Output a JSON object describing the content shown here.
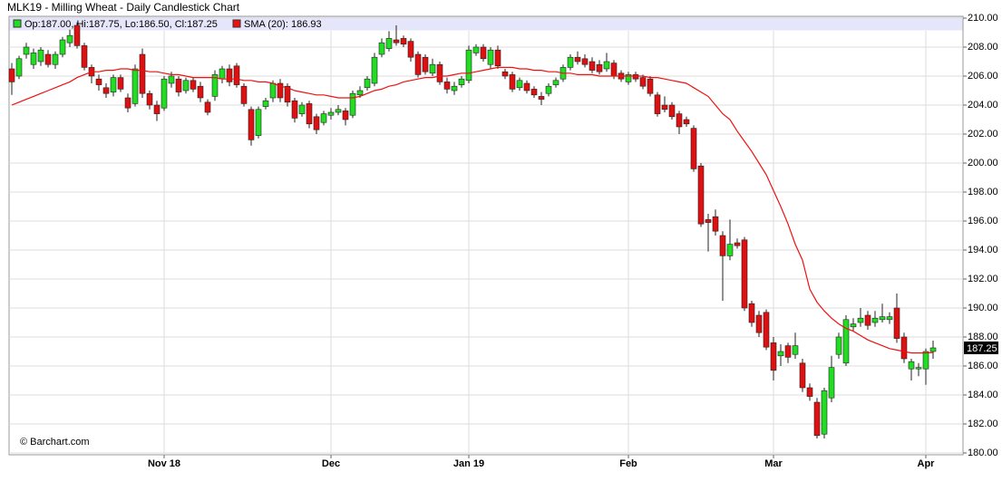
{
  "chart_data": {
    "type": "candlestick",
    "title": "MLK19 - Milling Wheat - Daily Candlestick Chart",
    "ohlc_legend": "Op:187.00, Hi:187.75, Lo:186.50, Cl:187.25",
    "credit": "© Barchart.com",
    "up_color": "#22dd22",
    "down_color": "#dd1111",
    "categories": [
      null,
      null,
      null,
      null,
      null,
      null,
      null,
      null,
      null,
      null,
      null,
      null,
      null,
      null,
      null,
      null,
      null,
      null,
      null,
      null,
      null,
      "Nov 18",
      null,
      null,
      null,
      null,
      null,
      null,
      null,
      null,
      null,
      null,
      null,
      null,
      null,
      null,
      null,
      null,
      null,
      null,
      null,
      null,
      null,
      null,
      "Dec",
      null,
      null,
      null,
      null,
      null,
      null,
      null,
      null,
      null,
      null,
      null,
      null,
      null,
      null,
      null,
      null,
      null,
      null,
      "Jan 19",
      null,
      null,
      null,
      null,
      null,
      null,
      null,
      null,
      null,
      null,
      null,
      null,
      null,
      null,
      null,
      null,
      null,
      null,
      null,
      null,
      null,
      "Feb",
      null,
      null,
      null,
      null,
      null,
      null,
      null,
      null,
      null,
      null,
      null,
      null,
      null,
      null,
      null,
      null,
      null,
      null,
      null,
      "Mar",
      null,
      null,
      null,
      null,
      null,
      null,
      null,
      null,
      null,
      null,
      null,
      null,
      null,
      null,
      null,
      null,
      null,
      null,
      null,
      null,
      "Apr",
      null
    ],
    "open": [
      206.5,
      206.0,
      207.5,
      206.8,
      207.0,
      207.5,
      206.8,
      207.5,
      208.3,
      209.5,
      208.1,
      206.6,
      205.8,
      205.2,
      204.9,
      205.9,
      204.5,
      204.1,
      207.5,
      204.8,
      204.0,
      203.8,
      205.5,
      205.8,
      205.0,
      205.7,
      205.3,
      204.2,
      204.6,
      205.8,
      206.5,
      206.7,
      205.3,
      203.7,
      201.9,
      203.9,
      204.5,
      205.5,
      205.3,
      204.3,
      203.4,
      204.1,
      203.2,
      202.8,
      203.3,
      203.5,
      203.6,
      203.3,
      204.7,
      205.2,
      205.5,
      207.5,
      207.9,
      208.5,
      208.6,
      208.4,
      207.5,
      207.3,
      206.2,
      206.8,
      205.6,
      205.0,
      205.4,
      205.7,
      207.6,
      208.0,
      206.8,
      207.8,
      206.3,
      206.1,
      205.2,
      205.5,
      205.1,
      204.6,
      204.8,
      205.4,
      205.8,
      206.6,
      207.3,
      207.2,
      207.0,
      206.8,
      206.5,
      206.9,
      206.2,
      205.6,
      206.1,
      205.9,
      205.8,
      204.7,
      204.0,
      204.0,
      203.4,
      203.0,
      202.4,
      199.8,
      196.1,
      196.3,
      195.0,
      193.6,
      194.5,
      194.7,
      190.3,
      189.5,
      189.7,
      187.6,
      186.7,
      187.4,
      186.8,
      186.2,
      184.5,
      183.5,
      181.3,
      183.8,
      186.8,
      186.2,
      188.7,
      189.0,
      189.5,
      189.0,
      189.2,
      189.2,
      190.0,
      188.0,
      185.8,
      185.8,
      185.8,
      187.0
    ],
    "high": [
      206.9,
      207.4,
      208.3,
      207.9,
      208.0,
      207.8,
      207.7,
      208.7,
      209.2,
      209.7,
      208.3,
      206.8,
      206.1,
      205.5,
      206.1,
      206.1,
      204.8,
      206.8,
      207.9,
      205.0,
      204.3,
      206.0,
      206.3,
      206.0,
      205.9,
      205.9,
      205.6,
      204.4,
      206.4,
      206.7,
      206.8,
      206.9,
      205.5,
      203.9,
      203.9,
      204.5,
      205.7,
      205.8,
      205.5,
      204.5,
      204.2,
      204.3,
      203.4,
      203.6,
      203.8,
      204.0,
      203.8,
      205.0,
      205.3,
      206.0,
      207.6,
      208.6,
      209.1,
      209.5,
      208.8,
      208.6,
      207.7,
      207.5,
      207.2,
      207.0,
      205.9,
      205.6,
      206.0,
      208.1,
      208.2,
      208.2,
      208.0,
      208.1,
      206.5,
      206.3,
      205.9,
      205.7,
      205.3,
      204.9,
      205.5,
      205.9,
      206.8,
      207.5,
      207.7,
      207.5,
      207.3,
      207.1,
      207.6,
      207.1,
      206.4,
      206.3,
      206.3,
      206.1,
      206.0,
      204.9,
      204.6,
      204.2,
      203.6,
      203.2,
      202.6,
      200.0,
      196.5,
      196.8,
      195.3,
      196.1,
      194.8,
      194.9,
      190.5,
      189.8,
      189.9,
      188.0,
      187.5,
      187.6,
      188.3,
      186.5,
      184.8,
      183.8,
      184.5,
      186.7,
      188.3,
      189.5,
      189.3,
      190.0,
      189.8,
      189.8,
      190.3,
      189.7,
      191.0,
      188.3,
      186.5,
      186.2,
      187.2,
      187.75
    ],
    "low": [
      204.7,
      205.8,
      207.2,
      206.5,
      206.7,
      206.6,
      206.5,
      207.3,
      208.0,
      207.9,
      206.4,
      205.5,
      205.0,
      204.5,
      204.6,
      204.9,
      203.5,
      203.9,
      204.5,
      203.7,
      202.9,
      203.6,
      205.2,
      204.6,
      204.8,
      204.9,
      204.2,
      203.3,
      204.3,
      205.5,
      205.3,
      205.2,
      203.9,
      201.2,
      201.7,
      203.7,
      204.2,
      204.2,
      203.9,
      202.8,
      203.2,
      202.4,
      202.0,
      202.6,
      203.0,
      203.3,
      202.6,
      203.1,
      204.5,
      205.0,
      205.3,
      207.3,
      207.7,
      208.1,
      208.0,
      207.0,
      205.9,
      206.1,
      206.0,
      205.4,
      204.8,
      204.7,
      205.2,
      205.5,
      207.4,
      207.0,
      206.5,
      206.5,
      205.8,
      204.9,
      205.0,
      204.8,
      204.5,
      204.0,
      204.6,
      205.2,
      205.6,
      206.4,
      206.8,
      206.6,
      206.2,
      206.1,
      206.3,
      205.8,
      205.6,
      205.4,
      205.6,
      205.1,
      204.6,
      203.2,
      203.5,
      203.0,
      202.0,
      202.5,
      199.4,
      195.6,
      193.9,
      195.0,
      190.5,
      193.3,
      194.1,
      189.8,
      188.7,
      188.0,
      187.1,
      185.0,
      186.0,
      186.2,
      186.5,
      184.2,
      183.6,
      181.0,
      181.0,
      183.5,
      186.5,
      186.0,
      188.4,
      188.7,
      188.5,
      188.7,
      189.0,
      188.9,
      187.6,
      186.2,
      185.0,
      185.3,
      184.7,
      186.5
    ],
    "close": [
      205.6,
      207.2,
      208.0,
      207.6,
      207.8,
      206.8,
      207.5,
      208.5,
      208.8,
      208.1,
      206.6,
      206.0,
      205.4,
      204.8,
      205.9,
      205.1,
      203.8,
      206.5,
      204.8,
      204.0,
      203.4,
      205.8,
      206.0,
      204.9,
      205.7,
      205.1,
      204.5,
      203.5,
      206.1,
      206.5,
      205.6,
      205.4,
      204.1,
      201.6,
      203.7,
      204.3,
      205.5,
      204.5,
      204.2,
      203.1,
      204.0,
      202.7,
      202.3,
      203.4,
      203.5,
      203.7,
      203.0,
      204.8,
      205.0,
      205.8,
      207.3,
      208.3,
      208.6,
      208.3,
      208.2,
      207.3,
      206.1,
      206.3,
      206.8,
      205.6,
      205.1,
      205.3,
      205.8,
      207.8,
      208.0,
      207.2,
      207.8,
      206.7,
      206.0,
      205.1,
      205.7,
      205.0,
      204.7,
      204.4,
      205.3,
      205.7,
      206.6,
      207.3,
      207.0,
      206.8,
      206.4,
      206.3,
      207.0,
      206.0,
      205.8,
      206.1,
      205.8,
      205.3,
      204.8,
      203.4,
      203.7,
      203.2,
      202.5,
      202.7,
      199.6,
      195.8,
      195.9,
      195.3,
      193.6,
      194.4,
      194.3,
      190.0,
      189.0,
      188.3,
      187.3,
      185.7,
      187.0,
      186.6,
      187.4,
      184.5,
      183.9,
      181.2,
      184.3,
      185.9,
      188.0,
      189.2,
      188.9,
      189.3,
      188.8,
      189.3,
      189.4,
      189.4,
      187.9,
      186.5,
      186.3,
      185.9,
      187.0,
      187.25
    ],
    "sma": {
      "label": "SMA (20): 186.93",
      "color": "#ee1111",
      "values": [
        204.0,
        204.2,
        204.4,
        204.6,
        204.8,
        205.0,
        205.2,
        205.4,
        205.6,
        205.9,
        206.1,
        206.3,
        206.3,
        206.4,
        206.4,
        206.5,
        206.5,
        206.4,
        206.4,
        206.3,
        206.3,
        206.2,
        206.1,
        206.1,
        206.0,
        205.9,
        205.9,
        205.9,
        205.9,
        205.8,
        205.8,
        205.8,
        205.7,
        205.7,
        205.6,
        205.6,
        205.5,
        205.3,
        205.2,
        205.0,
        204.9,
        204.8,
        204.7,
        204.7,
        204.6,
        204.5,
        204.5,
        204.5,
        204.6,
        204.8,
        205.0,
        205.1,
        205.3,
        205.4,
        205.6,
        205.7,
        205.8,
        205.9,
        205.9,
        206.0,
        206.0,
        206.1,
        206.2,
        206.2,
        206.3,
        206.4,
        206.5,
        206.6,
        206.6,
        206.6,
        206.5,
        206.5,
        206.4,
        206.4,
        206.3,
        206.3,
        206.2,
        206.2,
        206.1,
        206.1,
        206.1,
        206.0,
        206.0,
        206.0,
        206.0,
        206.0,
        206.0,
        206.0,
        205.9,
        205.9,
        205.8,
        205.7,
        205.6,
        205.5,
        205.2,
        204.9,
        204.6,
        204.0,
        203.4,
        203.0,
        202.2,
        201.5,
        200.8,
        200.0,
        199.2,
        198.1,
        197.0,
        195.8,
        194.4,
        193.3,
        191.3,
        190.4,
        189.8,
        189.3,
        188.9,
        188.6,
        188.4,
        188.1,
        187.8,
        187.6,
        187.4,
        187.2,
        187.1,
        187.0,
        186.9,
        186.9,
        186.9,
        186.93
      ]
    },
    "ylim": [
      180,
      210
    ],
    "yticks": [
      {
        "value": 180,
        "label": "180.00"
      },
      {
        "value": 182,
        "label": "182.00"
      },
      {
        "value": 184,
        "label": "184.00"
      },
      {
        "value": 186,
        "label": "186.00"
      },
      {
        "value": 188,
        "label": "188.00"
      },
      {
        "value": 190,
        "label": "190.00"
      },
      {
        "value": 192,
        "label": "192.00"
      },
      {
        "value": 194,
        "label": "194.00"
      },
      {
        "value": 196,
        "label": "196.00"
      },
      {
        "value": 198,
        "label": "198.00"
      },
      {
        "value": 200,
        "label": "200.00"
      },
      {
        "value": 202,
        "label": "202.00"
      },
      {
        "value": 204,
        "label": "204.00"
      },
      {
        "value": 206,
        "label": "206.00"
      },
      {
        "value": 208,
        "label": "208.00"
      },
      {
        "value": 210,
        "label": "210.00"
      }
    ],
    "grid": true,
    "last_price": 187.25
  }
}
